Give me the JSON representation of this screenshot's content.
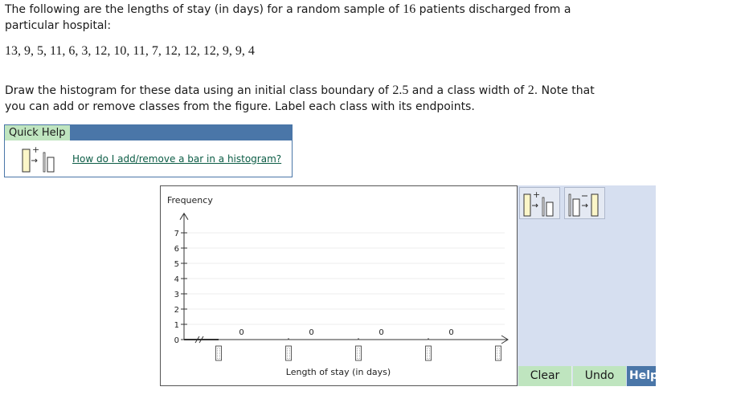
{
  "question": {
    "line1_pre": "The following are the lengths of stay (in days) for a random sample of ",
    "n": "16",
    "line1_post": " patients discharged from a particular hospital:",
    "data_list": "13, 9, 5, 11, 6, 3, 12, 10, 11, 7, 12, 12, 12, 9, 9, 4",
    "instr_pre": "Draw the histogram for these data using an initial class boundary of ",
    "boundary": "2.5",
    "instr_mid": " and a class width of ",
    "width": "2",
    "instr_post": ". Note that you can add or remove classes from the figure. Label each class with its endpoints."
  },
  "quick_help": {
    "title": "Quick Help",
    "link": "How do I add/remove a bar in a histogram?",
    "icon": "add-bar-icon"
  },
  "chart_data": {
    "type": "bar",
    "ylabel": "Frequency",
    "xlabel": "Length of stay (in days)",
    "y_ticks": [
      "0",
      "1",
      "2",
      "3",
      "4",
      "5",
      "6",
      "7"
    ],
    "ylim": [
      0,
      7.7
    ],
    "categories": [
      "",
      "",
      "",
      ""
    ],
    "values": [
      0,
      0,
      0,
      0
    ],
    "bar_labels": [
      "0",
      "0",
      "0",
      "0"
    ],
    "endpoint_labels": [
      "",
      "",
      "",
      "",
      ""
    ],
    "grid": true,
    "axis_break": true
  },
  "tools": {
    "add_icon": "add-bar-icon",
    "remove_icon": "remove-bar-icon"
  },
  "buttons": {
    "clear": "Clear",
    "undo": "Undo",
    "help": "Help"
  },
  "colors": {
    "header_blue": "#4a76a8",
    "button_green": "#bfe5bf",
    "panel_blue": "#d6dff0",
    "link_green": "#0b5c45"
  }
}
